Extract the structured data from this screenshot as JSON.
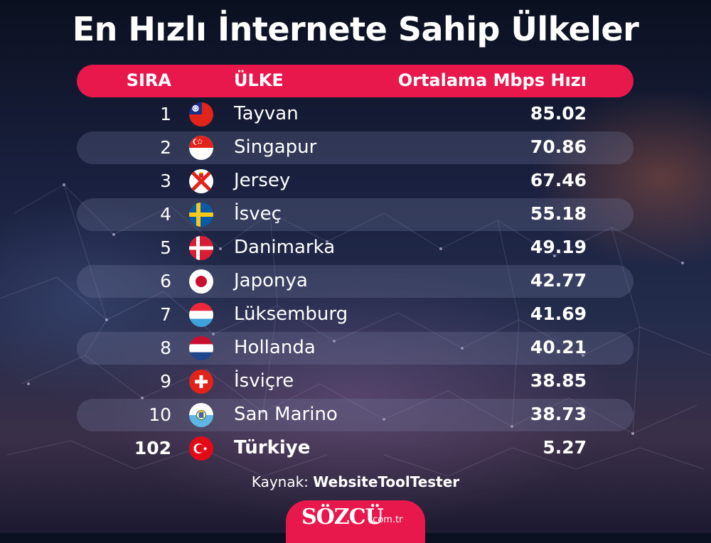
{
  "title": "En Hızlı İnternete Sahip Ülkeler",
  "header": {
    "rank": "SIRA",
    "country": "ÜLKE",
    "speed": "Ortalama Mbps Hızı"
  },
  "rows": [
    {
      "rank": "1",
      "country": "Tayvan",
      "speed": "85.02",
      "flag": "taiwan-flag-icon"
    },
    {
      "rank": "2",
      "country": "Singapur",
      "speed": "70.86",
      "flag": "singapore-flag-icon"
    },
    {
      "rank": "3",
      "country": "Jersey",
      "speed": "67.46",
      "flag": "jersey-flag-icon"
    },
    {
      "rank": "4",
      "country": "İsveç",
      "speed": "55.18",
      "flag": "sweden-flag-icon"
    },
    {
      "rank": "5",
      "country": "Danimarka",
      "speed": "49.19",
      "flag": "denmark-flag-icon"
    },
    {
      "rank": "6",
      "country": "Japonya",
      "speed": "42.77",
      "flag": "japan-flag-icon"
    },
    {
      "rank": "7",
      "country": "Lüksemburg",
      "speed": "41.69",
      "flag": "luxembourg-flag-icon"
    },
    {
      "rank": "8",
      "country": "Hollanda",
      "speed": "40.21",
      "flag": "netherlands-flag-icon"
    },
    {
      "rank": "9",
      "country": "İsviçre",
      "speed": "38.85",
      "flag": "switzerland-flag-icon"
    },
    {
      "rank": "10",
      "country": "San Marino",
      "speed": "38.73",
      "flag": "san-marino-flag-icon"
    },
    {
      "rank": "102",
      "country": "Türkiye",
      "speed": "5.27",
      "flag": "turkey-flag-icon"
    }
  ],
  "source": {
    "label": "Kaynak:",
    "name": "WebsiteToolTester"
  },
  "logo": {
    "brand": "SÖZCÜ",
    "domain": ".com.tr"
  },
  "colors": {
    "accent": "#e8184d",
    "band": "#787da0",
    "background": "#1a2140"
  }
}
